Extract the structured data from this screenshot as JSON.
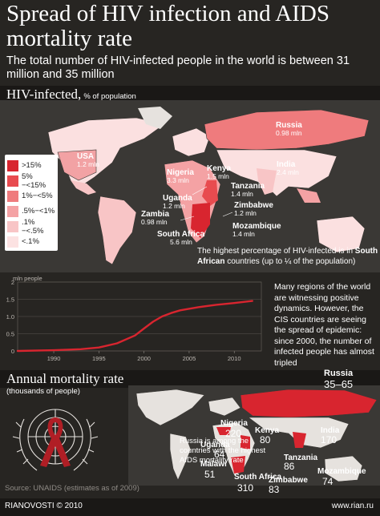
{
  "title": "Spread of HIV infection and AIDS mortality rate",
  "subtitle": "The total number of HIV-infected people in the world is between 31 million and 35 million",
  "hiv_section": {
    "title": "HIV-infected,",
    "unit": "% of population",
    "legend": [
      {
        "label": ">15%",
        "color": "#d8252f"
      },
      {
        "label": "5%−<15%",
        "color": "#e84b4f"
      },
      {
        "label": "1%−<5%",
        "color": "#ef7b7d"
      },
      {
        "label": ".5%−<1%",
        "color": "#f4a2a4"
      },
      {
        "label": ".1%−<.5%",
        "color": "#f8c5c6"
      },
      {
        "label": "<.1%",
        "color": "#fce2e2"
      }
    ],
    "countries": [
      {
        "name": "Russia",
        "value": "0.98 mln"
      },
      {
        "name": "USA",
        "value": "1.2 mln"
      },
      {
        "name": "Nigeria",
        "value": "3.3 mln"
      },
      {
        "name": "Kenya",
        "value": "1.5 mln"
      },
      {
        "name": "India",
        "value": "2.4 mln"
      },
      {
        "name": "Tanzania",
        "value": "1.4 mln"
      },
      {
        "name": "Uganda",
        "value": "1.2 mln"
      },
      {
        "name": "Zimbabwe",
        "value": "1.2 mln"
      },
      {
        "name": "Zambia",
        "value": "0.98 mln"
      },
      {
        "name": "Mozambique",
        "value": "1.4 mln"
      },
      {
        "name": "South Africa",
        "value": "5.6 mln"
      }
    ],
    "note_pre": "The highest percentage of HIV-infected is in ",
    "note_bold": "South African",
    "note_post": " countries (up to ¼ of  the population)"
  },
  "chart_data": {
    "type": "line",
    "ylabel": "mln people",
    "xlim": [
      1986,
      2013
    ],
    "ylim": [
      0,
      2
    ],
    "yticks": [
      0,
      0.5,
      1.0,
      1.5,
      2
    ],
    "ytick_labels": [
      "0",
      "0.5",
      "1.0",
      "1.5",
      "2"
    ],
    "xticks": [
      1990,
      1995,
      2000,
      2005,
      2010
    ],
    "grid": true,
    "series": [
      {
        "x": [
          1986,
          1990,
          1993,
          1995,
          1997,
          1999,
          2000,
          2001,
          2002,
          2003,
          2004,
          2006,
          2008,
          2010,
          2012
        ],
        "values": [
          0,
          0.02,
          0.05,
          0.1,
          0.22,
          0.45,
          0.65,
          0.85,
          1.0,
          1.1,
          1.18,
          1.27,
          1.34,
          1.39,
          1.45
        ]
      }
    ],
    "color": "#d8252f"
  },
  "chart_note": "Many regions of the world are witnessing positive dynamics. However, the CIS countries are seeing the spread of epidemic: since 2000, the number of infected people has almost tripled",
  "mortality_section": {
    "title": "Annual mortality rate",
    "unit": "(thousands of people)",
    "countries": [
      {
        "name": "Russia",
        "value": "35–65"
      },
      {
        "name": "Nigeria",
        "value": "220"
      },
      {
        "name": "Kenya",
        "value": "80"
      },
      {
        "name": "India",
        "value": "170"
      },
      {
        "name": "Uganda",
        "value": "64"
      },
      {
        "name": "Tanzania",
        "value": "86"
      },
      {
        "name": "Malawi",
        "value": "51"
      },
      {
        "name": "South Africa",
        "value": "310"
      },
      {
        "name": "Zimbabwe",
        "value": "83"
      },
      {
        "name": "Mozambique",
        "value": "74"
      }
    ],
    "note": "Russia is among the countries with the highest AIDS mortality rate"
  },
  "source": "Source: UNAIDS (estimates as of 2009)",
  "footer": {
    "left": "RIANOVOSTI © 2010",
    "right": "www.rian.ru"
  }
}
